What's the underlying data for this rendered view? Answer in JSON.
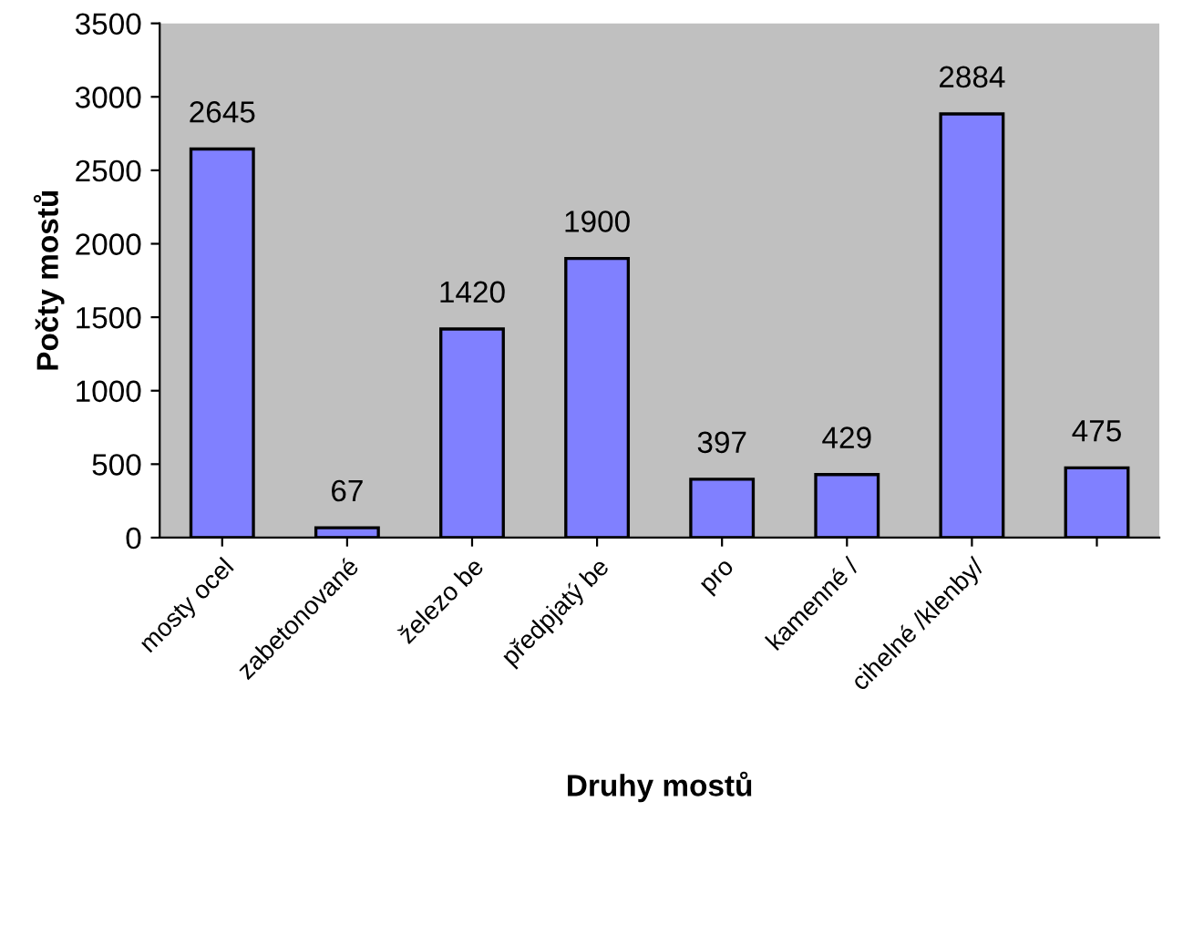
{
  "chart_data": {
    "type": "bar",
    "xlabel": "Druhy mostů",
    "ylabel": "Počty mostů",
    "categories": [
      "mosty ocel",
      "zabetonované",
      "železo be",
      "předpjatý be",
      "pro",
      "kamenné /",
      "cihelné /klenby/",
      null
    ],
    "values": [
      2645,
      67,
      1420,
      1900,
      397,
      429,
      2884,
      475
    ],
    "color": "#8080ff",
    "ylim": [
      0,
      3500
    ],
    "yticks": [
      0,
      500,
      1000,
      1500,
      2000,
      2500,
      3000,
      3500
    ],
    "grid": false,
    "data_labels": true
  }
}
